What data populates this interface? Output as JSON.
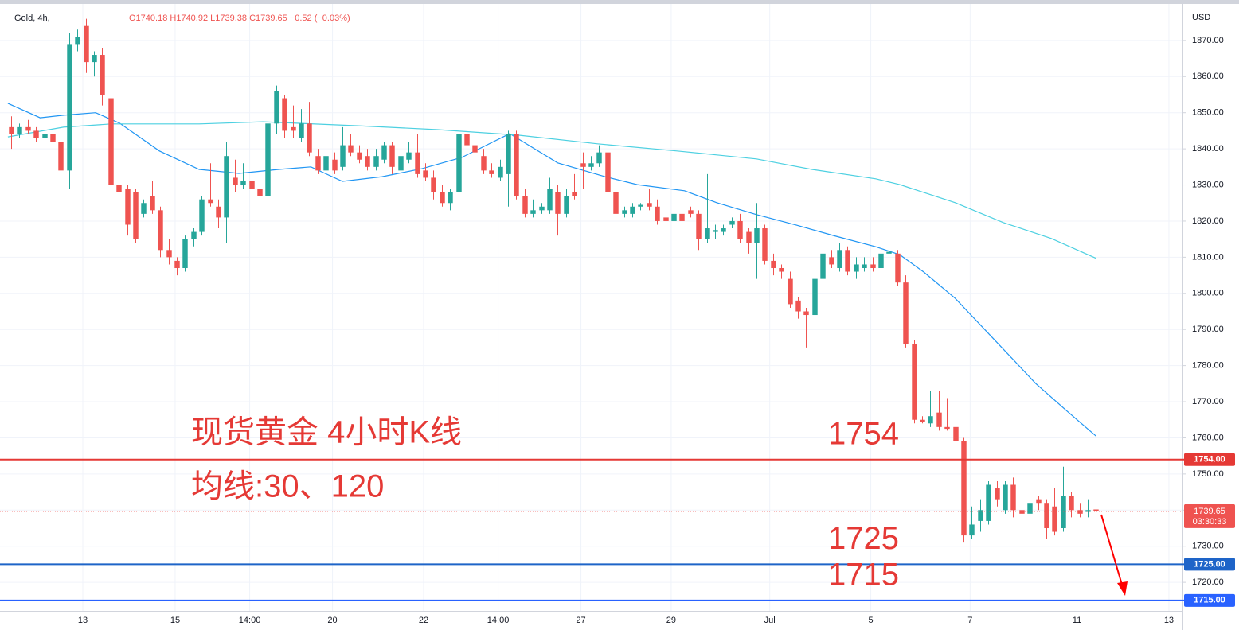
{
  "header": {
    "symbol": "Gold, 4h,",
    "ohlc_text": "O1740.18 H1740.92 L1739.38 C1739.65 −0.52 (−0.03%)"
  },
  "chart_data": {
    "type": "candlestick",
    "currency": "USD",
    "up_color": "#26a69a",
    "down_color": "#ef5350",
    "xlim": [
      -1.35,
      141.44
    ],
    "xticks": [
      {
        "value": 8.65,
        "label": "13"
      },
      {
        "value": 19.8,
        "label": "15"
      },
      {
        "value": 28.8,
        "label": "14:00"
      },
      {
        "value": 38.8,
        "label": "20"
      },
      {
        "value": 49.8,
        "label": "22"
      },
      {
        "value": 58.8,
        "label": "14:00"
      },
      {
        "value": 68.8,
        "label": "27"
      },
      {
        "value": 79.7,
        "label": "29"
      },
      {
        "value": 91.6,
        "label": "Jul"
      },
      {
        "value": 103.8,
        "label": "5"
      },
      {
        "value": 115.8,
        "label": "7"
      },
      {
        "value": 128.7,
        "label": "11"
      },
      {
        "value": 139.8,
        "label": "13"
      }
    ],
    "ylim": [
      1712.1,
      1881.2
    ],
    "yticks": [
      {
        "value": 1720,
        "label": "1720.00"
      },
      {
        "value": 1730,
        "label": "1730.00"
      },
      {
        "value": 1740,
        "label": "1740.00"
      },
      {
        "value": 1750,
        "label": "1750.00"
      },
      {
        "value": 1760,
        "label": "1760.00"
      },
      {
        "value": 1770,
        "label": "1770.00"
      },
      {
        "value": 1780,
        "label": "1780.00"
      },
      {
        "value": 1790,
        "label": "1790.00"
      },
      {
        "value": 1800,
        "label": "1800.00"
      },
      {
        "value": 1810,
        "label": "1810.00"
      },
      {
        "value": 1820,
        "label": "1820.00"
      },
      {
        "value": 1830,
        "label": "1830.00"
      },
      {
        "value": 1840,
        "label": "1840.00"
      },
      {
        "value": 1850,
        "label": "1850.00"
      },
      {
        "value": 1860,
        "label": "1860.00"
      },
      {
        "value": 1870,
        "label": "1870.00"
      }
    ],
    "grid": true,
    "candles": [
      [
        1846,
        1849,
        1840,
        1844
      ],
      [
        1844,
        1847,
        1843,
        1846
      ],
      [
        1846,
        1848,
        1844,
        1845
      ],
      [
        1845,
        1846,
        1842,
        1843
      ],
      [
        1843,
        1846,
        1842,
        1844
      ],
      [
        1844,
        1846,
        1841,
        1842
      ],
      [
        1842,
        1845,
        1825,
        1834
      ],
      [
        1834,
        1872,
        1829,
        1869
      ],
      [
        1869,
        1873,
        1867,
        1871
      ],
      [
        1874,
        1876,
        1861,
        1864
      ],
      [
        1864,
        1867,
        1860,
        1866
      ],
      [
        1866,
        1868,
        1852,
        1855
      ],
      [
        1854,
        1856,
        1829,
        1830
      ],
      [
        1830,
        1834,
        1827,
        1828
      ],
      [
        1829,
        1830,
        1816,
        1819
      ],
      [
        1828,
        1829,
        1814,
        1815
      ],
      [
        1822,
        1826,
        1821,
        1825
      ],
      [
        1827,
        1831,
        1822,
        1823
      ],
      [
        1823,
        1824,
        1810,
        1812
      ],
      [
        1812,
        1815,
        1808,
        1810
      ],
      [
        1809,
        1810,
        1805,
        1807
      ],
      [
        1807,
        1816,
        1806,
        1815
      ],
      [
        1815,
        1818,
        1813,
        1817
      ],
      [
        1817,
        1827,
        1816,
        1826
      ],
      [
        1826,
        1836,
        1824,
        1825
      ],
      [
        1824,
        1826,
        1818,
        1821
      ],
      [
        1821,
        1842,
        1814,
        1838
      ],
      [
        1832,
        1837,
        1828,
        1830
      ],
      [
        1830,
        1836,
        1829,
        1831
      ],
      [
        1831,
        1838,
        1826,
        1829
      ],
      [
        1829,
        1831,
        1815,
        1827
      ],
      [
        1827,
        1848,
        1825,
        1847
      ],
      [
        1847,
        1857.5,
        1844,
        1856
      ],
      [
        1854,
        1855,
        1843,
        1845
      ],
      [
        1846,
        1852,
        1843,
        1845
      ],
      [
        1843,
        1851,
        1842,
        1847
      ],
      [
        1847,
        1853,
        1838,
        1839
      ],
      [
        1838,
        1840,
        1833,
        1834
      ],
      [
        1834,
        1843,
        1833,
        1838
      ],
      [
        1837,
        1839,
        1833,
        1834
      ],
      [
        1835,
        1846,
        1834,
        1841
      ],
      [
        1841,
        1844,
        1838,
        1839
      ],
      [
        1839,
        1841,
        1836,
        1837
      ],
      [
        1838,
        1840,
        1834,
        1835
      ],
      [
        1835,
        1840,
        1834,
        1838
      ],
      [
        1837,
        1842,
        1836,
        1841
      ],
      [
        1841,
        1842,
        1833,
        1835
      ],
      [
        1834,
        1839,
        1833,
        1838
      ],
      [
        1837,
        1842,
        1836,
        1839
      ],
      [
        1839,
        1844,
        1832,
        1833
      ],
      [
        1834,
        1836,
        1831,
        1832
      ],
      [
        1832,
        1834,
        1826,
        1828
      ],
      [
        1828,
        1830,
        1824,
        1825
      ],
      [
        1825,
        1829,
        1823,
        1828
      ],
      [
        1828,
        1848,
        1827,
        1844
      ],
      [
        1844,
        1846,
        1840,
        1841
      ],
      [
        1841,
        1843,
        1838,
        1839
      ],
      [
        1838,
        1840,
        1833,
        1834
      ],
      [
        1834,
        1836,
        1832,
        1833
      ],
      [
        1832,
        1837,
        1831,
        1835
      ],
      [
        1833,
        1845,
        1824,
        1844
      ],
      [
        1844,
        1845,
        1826,
        1827
      ],
      [
        1827,
        1829,
        1821,
        1822
      ],
      [
        1822,
        1826,
        1821,
        1823
      ],
      [
        1823,
        1825,
        1822,
        1824
      ],
      [
        1823,
        1832,
        1822,
        1829
      ],
      [
        1828,
        1830,
        1816,
        1822
      ],
      [
        1822,
        1829,
        1821,
        1827
      ],
      [
        1828,
        1833,
        1826,
        1827
      ],
      [
        1836,
        1839,
        1829,
        1835
      ],
      [
        1835,
        1838,
        1834,
        1836
      ],
      [
        1836,
        1841,
        1835,
        1839
      ],
      [
        1839,
        1840,
        1827,
        1828
      ],
      [
        1828,
        1830,
        1821,
        1822
      ],
      [
        1822,
        1824,
        1821,
        1823
      ],
      [
        1822,
        1825,
        1821,
        1824
      ],
      [
        1824,
        1825,
        1823,
        1824.5
      ],
      [
        1825,
        1829,
        1823,
        1824
      ],
      [
        1824,
        1826,
        1819,
        1820
      ],
      [
        1821,
        1823,
        1819,
        1820
      ],
      [
        1820,
        1823,
        1819,
        1822
      ],
      [
        1822,
        1823,
        1819,
        1820
      ],
      [
        1823,
        1824,
        1821,
        1822
      ],
      [
        1822,
        1823,
        1812,
        1815
      ],
      [
        1815,
        1833,
        1814,
        1818
      ],
      [
        1817,
        1819,
        1815,
        1817.5
      ],
      [
        1817,
        1819,
        1816,
        1818
      ],
      [
        1819,
        1821,
        1818,
        1820
      ],
      [
        1820,
        1822,
        1814,
        1815
      ],
      [
        1817,
        1818,
        1811,
        1814
      ],
      [
        1814,
        1825,
        1804,
        1818
      ],
      [
        1818,
        1819,
        1808,
        1809
      ],
      [
        1809,
        1811,
        1805,
        1807
      ],
      [
        1807,
        1808,
        1804,
        1806
      ],
      [
        1804,
        1806,
        1796,
        1797
      ],
      [
        1798,
        1799,
        1793,
        1795
      ],
      [
        1795,
        1796,
        1785,
        1794
      ],
      [
        1794,
        1805,
        1793,
        1804
      ],
      [
        1804,
        1812,
        1803,
        1811
      ],
      [
        1810,
        1812,
        1807,
        1808
      ],
      [
        1807,
        1814,
        1806,
        1812
      ],
      [
        1812,
        1813,
        1805,
        1806
      ],
      [
        1806,
        1810,
        1804,
        1808
      ],
      [
        1807,
        1810,
        1806,
        1808
      ],
      [
        1808,
        1810,
        1806,
        1807
      ],
      [
        1807,
        1812,
        1806,
        1811
      ],
      [
        1811,
        1812,
        1810,
        1811.5
      ],
      [
        1811,
        1812,
        1802,
        1803
      ],
      [
        1803,
        1805,
        1785,
        1786
      ],
      [
        1786,
        1787,
        1764,
        1765
      ],
      [
        1765,
        1766,
        1764,
        1764.5
      ],
      [
        1764,
        1773,
        1763,
        1766
      ],
      [
        1767,
        1773,
        1762,
        1763
      ],
      [
        1763,
        1771,
        1762,
        1762.5
      ],
      [
        1763,
        1768,
        1755,
        1759
      ],
      [
        1759,
        1760,
        1731,
        1733
      ],
      [
        1733,
        1741,
        1732,
        1736
      ],
      [
        1737,
        1743,
        1734,
        1740
      ],
      [
        1737,
        1748,
        1736,
        1747
      ],
      [
        1746,
        1748,
        1741,
        1743
      ],
      [
        1740,
        1748,
        1739,
        1747
      ],
      [
        1747,
        1749,
        1738,
        1740
      ],
      [
        1740,
        1741,
        1737,
        1739
      ],
      [
        1739,
        1744,
        1738,
        1742
      ],
      [
        1743,
        1744,
        1740,
        1742
      ],
      [
        1742,
        1743,
        1732,
        1735
      ],
      [
        1741,
        1746,
        1733,
        1734
      ],
      [
        1735,
        1752,
        1734,
        1744
      ],
      [
        1744,
        1745,
        1738,
        1740
      ],
      [
        1740,
        1742,
        1738,
        1739
      ],
      [
        1739.5,
        1743,
        1738,
        1740
      ],
      [
        1740.18,
        1740.92,
        1739.38,
        1739.65
      ]
    ],
    "lines": [
      {
        "color": "#2196f3",
        "x": [
          -0.4,
          3.5,
          6.3,
          10.2,
          13.1,
          17.9,
          22.7,
          27.5,
          32.3,
          36.2,
          40.0,
          44.8,
          49.6,
          54.4,
          60.2,
          66.0,
          71.7,
          75.6,
          81.3,
          85.2,
          90.0,
          94.8,
          99.6,
          104.4,
          107.3,
          110.2,
          114.0,
          118.8,
          123.7,
          127.5,
          131
        ],
        "values": [
          1852.6,
          1848.6,
          1849.3,
          1850.0,
          1847.1,
          1839.4,
          1834.3,
          1833.2,
          1834.3,
          1835.0,
          1831.0,
          1832.3,
          1834.5,
          1837.6,
          1844.2,
          1836.1,
          1832.3,
          1830.1,
          1828.4,
          1825.1,
          1821.8,
          1818.9,
          1815.8,
          1812.9,
          1810.7,
          1805.9,
          1798.6,
          1787.0,
          1775.1,
          1767.4,
          1760.5
        ]
      },
      {
        "color": "#4dd0e1",
        "x": [
          -0.4,
          6.3,
          12.1,
          22.7,
          30.4,
          41.9,
          51.5,
          61.2,
          70.8,
          80.4,
          90.0,
          96.7,
          104.4,
          107.3,
          114.0,
          119.8,
          125.6,
          131
        ],
        "values": [
          1843.3,
          1846.0,
          1846.9,
          1846.9,
          1847.5,
          1846.4,
          1845.3,
          1843.8,
          1841.4,
          1839.4,
          1837.2,
          1834.3,
          1831.7,
          1830.1,
          1825.1,
          1819.6,
          1815.2,
          1809.7
        ]
      }
    ],
    "levels": [
      {
        "value": 1754,
        "label": "1754.00",
        "annotation": "1754",
        "color": "#e53935"
      },
      {
        "value": 1725,
        "label": "1725.00",
        "annotation": "1725",
        "color": "#1e64c8"
      },
      {
        "value": 1715,
        "label": "1715.00",
        "annotation": "1715",
        "color": "#2962ff"
      }
    ],
    "last_price": {
      "value": 1739.65,
      "label": "1739.65",
      "countdown": "03:30:33",
      "color": "#ef5350"
    },
    "annotations": [
      "现货黄金 4小时K线",
      "均线:30、120"
    ],
    "annotation_color": "#e53935"
  }
}
